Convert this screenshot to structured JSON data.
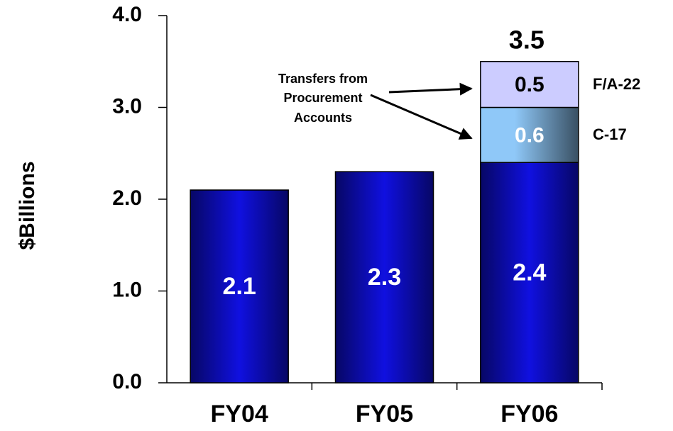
{
  "chart_data": {
    "type": "stacked_bar",
    "y_label": "$Billions",
    "categories": [
      "FY04",
      "FY05",
      "FY06"
    ],
    "series": [
      {
        "color": "#1010e0",
        "label_color": "#ffffff",
        "values": [
          2.1,
          2.3,
          2.4
        ]
      },
      {
        "name": "C-17",
        "color": "#8fc8f8",
        "label_color": "#ffffff",
        "values": [
          null,
          null,
          0.6
        ]
      },
      {
        "name": "F/A-22",
        "color": "#ccccff",
        "label_color": "#000000",
        "values": [
          null,
          null,
          0.5
        ]
      }
    ],
    "totals": [
      null,
      null,
      3.5
    ],
    "annotation": [
      "Transfers from",
      "Procurement",
      "Accounts"
    ],
    "ylim": [
      0,
      4
    ],
    "yticks": [
      {
        "value": 0,
        "label": "0.0"
      },
      {
        "value": 1,
        "label": "1.0"
      },
      {
        "value": 2,
        "label": "2.0"
      },
      {
        "value": 3,
        "label": "3.0"
      },
      {
        "value": 4,
        "label": "4.0"
      }
    ],
    "grid": false
  }
}
